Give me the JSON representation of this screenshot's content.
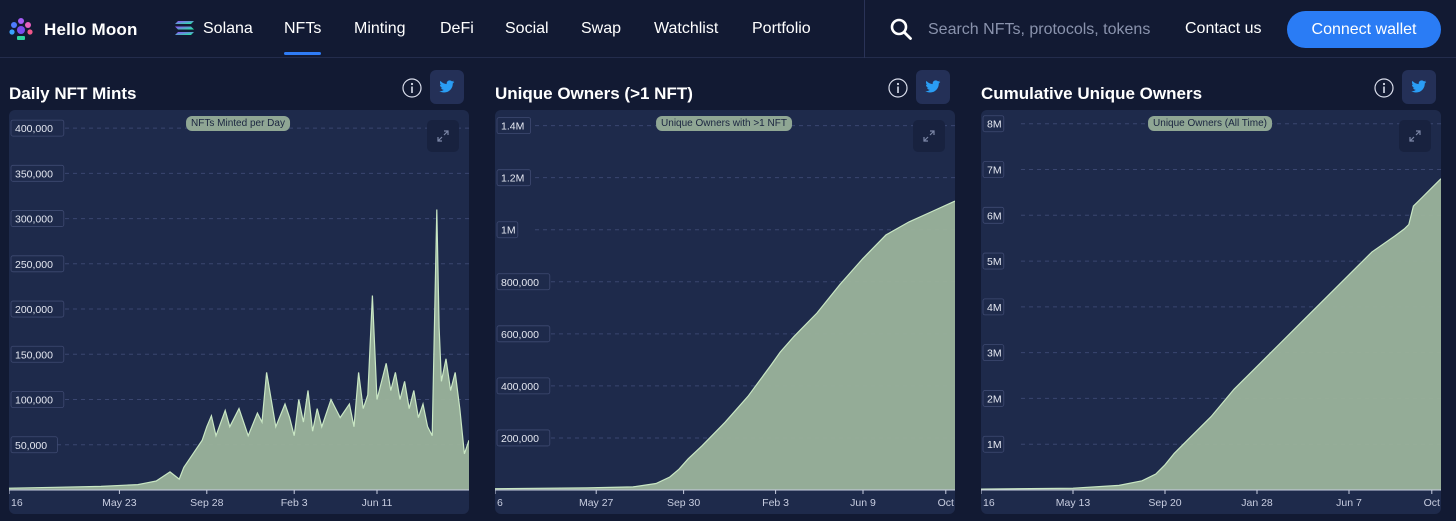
{
  "nav": {
    "brand": "Hello Moon",
    "chain": "Solana",
    "items": [
      "NFTs",
      "Minting",
      "DeFi",
      "Social",
      "Swap",
      "Watchlist",
      "Portfolio"
    ],
    "active": "NFTs",
    "search_placeholder": "Search NFTs, protocols, tokens",
    "contact": "Contact us",
    "connect": "Connect wallet",
    "accent": "#2f7cf6"
  },
  "colors": {
    "fill": "#9bb39b",
    "stroke": "#c9e7c4",
    "panel": "#1e2a4b",
    "background": "#121a33"
  },
  "chart_data": [
    {
      "type": "area",
      "title": "Daily NFT Mints",
      "legend": "NFTs Minted per Day",
      "ylim": [
        0,
        420000
      ],
      "yticks": [
        50000,
        100000,
        150000,
        200000,
        250000,
        300000,
        350000,
        400000
      ],
      "ytick_labels": [
        "50,000",
        "100,000",
        "150,000",
        "200,000",
        "250,000",
        "300,000",
        "350,000",
        "400,000"
      ],
      "xlim": [
        0,
        100
      ],
      "xticks": [
        0,
        24,
        43,
        62,
        80
      ],
      "xtick_labels": [
        "16",
        "May 23",
        "Sep 28",
        "Feb 3",
        "Jun 11"
      ],
      "x": [
        0,
        10,
        20,
        28,
        30,
        32,
        35,
        37,
        38,
        40,
        42,
        43,
        44,
        45,
        47,
        48,
        50,
        52,
        54,
        55,
        56,
        58,
        60,
        61,
        62,
        63,
        64,
        65,
        66,
        67,
        68,
        70,
        72,
        74,
        75,
        76,
        77,
        78,
        79,
        80,
        81,
        82,
        83,
        84,
        85,
        86,
        87,
        88,
        89,
        90,
        91,
        92,
        93,
        93.5,
        94,
        95,
        96,
        97,
        98,
        99,
        100
      ],
      "values": [
        2000,
        3000,
        4000,
        6000,
        8000,
        10000,
        20000,
        12000,
        25000,
        40000,
        55000,
        70000,
        82000,
        60000,
        88000,
        70000,
        90000,
        60000,
        85000,
        75000,
        130000,
        70000,
        95000,
        80000,
        60000,
        100000,
        75000,
        110000,
        65000,
        90000,
        70000,
        100000,
        80000,
        95000,
        70000,
        130000,
        90000,
        105000,
        215000,
        100000,
        120000,
        140000,
        110000,
        130000,
        100000,
        120000,
        90000,
        110000,
        80000,
        95000,
        70000,
        60000,
        310000,
        180000,
        120000,
        145000,
        110000,
        130000,
        90000,
        40000,
        55000
      ]
    },
    {
      "type": "area",
      "title": "Unique Owners (>1 NFT)",
      "legend": "Unique Owners with >1 NFT",
      "ylim": [
        0,
        1460000
      ],
      "yticks": [
        200000,
        400000,
        600000,
        800000,
        1000000,
        1200000,
        1400000
      ],
      "ytick_labels": [
        "200,000",
        "400,000",
        "600,000",
        "800,000",
        "1M",
        "1.2M",
        "1.4M"
      ],
      "xlim": [
        0,
        100
      ],
      "xticks": [
        0,
        22,
        41,
        61,
        80,
        98
      ],
      "xtick_labels": [
        "6",
        "May 27",
        "Sep 30",
        "Feb 3",
        "Jun 9",
        "Oct"
      ],
      "x": [
        0,
        20,
        30,
        35,
        38,
        40,
        42,
        45,
        50,
        55,
        60,
        62,
        65,
        70,
        75,
        80,
        85,
        90,
        95,
        100
      ],
      "values": [
        5000,
        8000,
        12000,
        25000,
        50000,
        80000,
        120000,
        170000,
        260000,
        360000,
        480000,
        530000,
        590000,
        680000,
        790000,
        890000,
        980000,
        1030000,
        1070000,
        1110000
      ]
    },
    {
      "type": "area",
      "title": "Cumulative Unique Owners",
      "legend": "Unique Owners (All Time)",
      "ylim": [
        0,
        8300000
      ],
      "yticks": [
        1000000,
        2000000,
        3000000,
        4000000,
        5000000,
        6000000,
        7000000,
        8000000
      ],
      "ytick_labels": [
        "1M",
        "2M",
        "3M",
        "4M",
        "5M",
        "6M",
        "7M",
        "8M"
      ],
      "xlim": [
        0,
        100
      ],
      "xticks": [
        0,
        20,
        40,
        60,
        80,
        98
      ],
      "xtick_labels": [
        "16",
        "May 13",
        "Sep 20",
        "Jan 28",
        "Jun 7",
        "Oct"
      ],
      "x": [
        0,
        20,
        30,
        35,
        38,
        40,
        42,
        45,
        50,
        55,
        60,
        65,
        70,
        75,
        80,
        85,
        90,
        92,
        93,
        94,
        96,
        98,
        100
      ],
      "values": [
        20000,
        40000,
        100000,
        200000,
        350000,
        550000,
        800000,
        1100000,
        1600000,
        2200000,
        2700000,
        3200000,
        3700000,
        4200000,
        4700000,
        5200000,
        5550000,
        5700000,
        5800000,
        6200000,
        6400000,
        6600000,
        6800000
      ]
    }
  ]
}
